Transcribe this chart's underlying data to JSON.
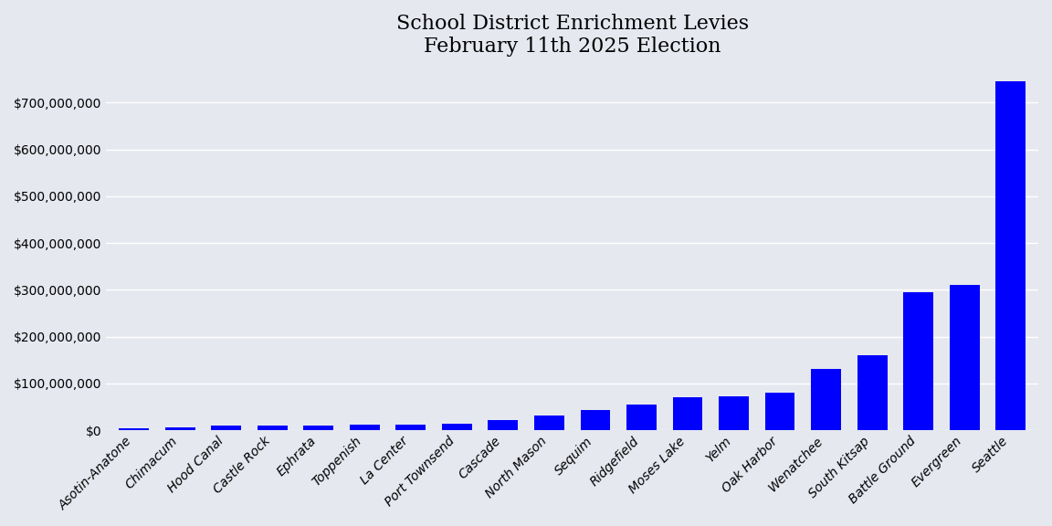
{
  "title": "School District Enrichment Levies\nFebruary 11th 2025 Election",
  "categories": [
    "Asotin-Anatone",
    "Chimacum",
    "Hood Canal",
    "Castle Rock",
    "Ephrata",
    "Toppenish",
    "La Center",
    "Port Townsend",
    "Cascade",
    "North Mason",
    "Sequim",
    "Ridgefield",
    "Moses Lake",
    "Yelm",
    "Oak Harbor",
    "Wenatchee",
    "South Kitsap",
    "Battle Ground",
    "Evergreen",
    "Seattle"
  ],
  "values": [
    4500000,
    5500000,
    9000000,
    10000000,
    10500000,
    11000000,
    12000000,
    14000000,
    22000000,
    32000000,
    42000000,
    55000000,
    70000000,
    72000000,
    80000000,
    130000000,
    160000000,
    295000000,
    310000000,
    745000000
  ],
  "bar_color": "#0000ff",
  "background_color": "#e6e8f0",
  "title_fontsize": 16,
  "tick_fontsize": 10,
  "ylim": [
    0,
    780000000
  ],
  "ytick_interval": 100000000,
  "ytick_max": 700000001,
  "grid_color": "#ffffff",
  "grid_linewidth": 1.0
}
